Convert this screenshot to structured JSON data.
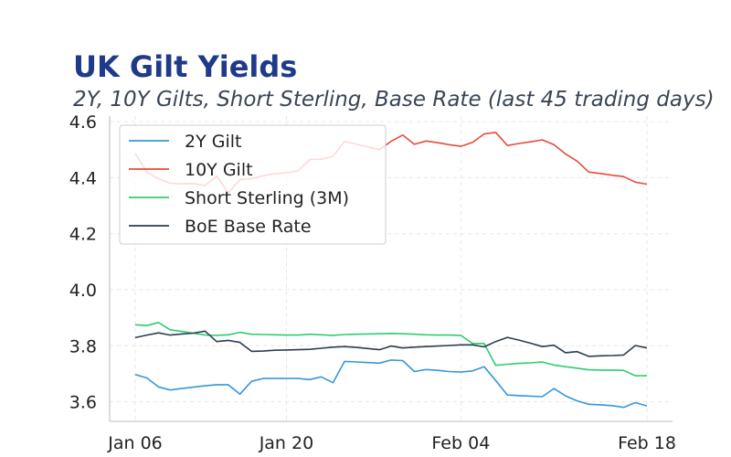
{
  "chart_data": {
    "type": "line",
    "title": "UK Gilt Yields",
    "subtitle": "2Y, 10Y Gilts, Short Sterling, Base Rate (last 45 trading days)",
    "xlabel": "",
    "ylabel": "",
    "x_ticks": [
      "Jan 06",
      "Jan 20",
      "Feb 04",
      "Feb 18"
    ],
    "y_ticks": [
      "3.6",
      "3.8",
      "4.0",
      "4.2",
      "4.4",
      "4.6"
    ],
    "ylim": [
      3.53,
      4.62
    ],
    "grid": true,
    "legend_position": "upper-left",
    "series": [
      {
        "name": "2Y Gilt",
        "color": "#3498db",
        "values": [
          3.697,
          3.685,
          3.653,
          3.642,
          3.647,
          3.652,
          3.657,
          3.661,
          3.661,
          3.627,
          3.673,
          3.683,
          3.683,
          3.683,
          3.683,
          3.679,
          3.689,
          3.668,
          3.744,
          3.742,
          3.74,
          3.738,
          3.749,
          3.747,
          3.708,
          3.715,
          3.712,
          3.708,
          3.706,
          3.71,
          3.725,
          3.676,
          3.624,
          3.622,
          3.62,
          3.618,
          3.647,
          3.621,
          3.603,
          3.591,
          3.589,
          3.586,
          3.58,
          3.597,
          3.585
        ]
      },
      {
        "name": "10Y Gilt",
        "color": "#e74c3c",
        "values": [
          4.487,
          4.42,
          4.396,
          4.38,
          4.378,
          4.379,
          4.372,
          4.406,
          4.346,
          4.393,
          4.397,
          4.407,
          4.414,
          4.418,
          4.424,
          4.465,
          4.466,
          4.476,
          4.53,
          4.52,
          4.51,
          4.5,
          4.53,
          4.552,
          4.519,
          4.531,
          4.525,
          4.518,
          4.512,
          4.526,
          4.556,
          4.562,
          4.515,
          4.522,
          4.528,
          4.535,
          4.518,
          4.485,
          4.459,
          4.42,
          4.415,
          4.409,
          4.404,
          4.384,
          4.377
        ]
      },
      {
        "name": "Short Sterling (3M)",
        "color": "#2ecc71",
        "values": [
          3.875,
          3.872,
          3.883,
          3.857,
          3.851,
          3.845,
          3.838,
          3.837,
          3.839,
          3.848,
          3.841,
          3.84,
          3.839,
          3.838,
          3.838,
          3.841,
          3.839,
          3.837,
          3.84,
          3.841,
          3.842,
          3.843,
          3.844,
          3.843,
          3.841,
          3.839,
          3.838,
          3.838,
          3.837,
          3.808,
          3.808,
          3.73,
          3.734,
          3.737,
          3.739,
          3.742,
          3.731,
          3.725,
          3.72,
          3.714,
          3.713,
          3.713,
          3.712,
          3.693,
          3.693
        ]
      },
      {
        "name": "BoE Base Rate",
        "color": "#2c3e50",
        "values": [
          3.829,
          3.838,
          3.846,
          3.838,
          3.842,
          3.845,
          3.852,
          3.815,
          3.819,
          3.812,
          3.78,
          3.781,
          3.784,
          3.785,
          3.786,
          3.787,
          3.791,
          3.795,
          3.797,
          3.794,
          3.79,
          3.786,
          3.799,
          3.792,
          3.795,
          3.797,
          3.799,
          3.801,
          3.803,
          3.803,
          3.796,
          3.815,
          3.83,
          3.82,
          3.809,
          3.797,
          3.802,
          3.775,
          3.779,
          3.762,
          3.764,
          3.765,
          3.767,
          3.801,
          3.792
        ]
      }
    ]
  }
}
